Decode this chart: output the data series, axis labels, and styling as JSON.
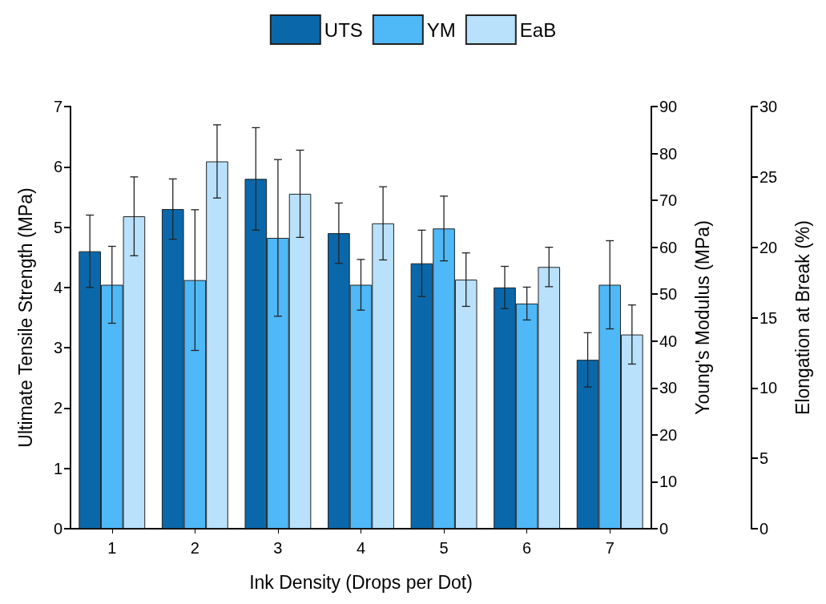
{
  "chart_data": {
    "type": "bar",
    "xlabel": "Ink Density (Drops per Dot)",
    "ylabel": "Ultimate Tensile Strength (MPa)",
    "y2label": "Young's Modulus (MPa)",
    "y3label": "Elongation at Break (%)",
    "categories": [
      "1",
      "2",
      "3",
      "4",
      "5",
      "6",
      "7"
    ],
    "series": [
      {
        "name": "UTS",
        "color": "#0a68aa",
        "values": [
          4.6,
          5.3,
          5.8,
          4.9,
          4.4,
          4.0,
          2.8
        ],
        "errors": [
          0.6,
          0.5,
          0.85,
          0.5,
          0.55,
          0.35,
          0.45
        ]
      },
      {
        "name": "YM",
        "color": "#4fb8f7",
        "axis": "y2",
        "values": [
          52,
          53,
          62,
          52,
          64,
          48,
          52
        ],
        "errors": [
          8.2,
          15,
          16.7,
          5.4,
          6.9,
          3.5,
          9.4
        ]
      },
      {
        "name": "EaB",
        "color": "#b9e1fb",
        "axis": "y3",
        "values": [
          22.2,
          26.1,
          23.8,
          21.7,
          17.7,
          18.6,
          13.8
        ],
        "errors": [
          2.8,
          2.6,
          3.1,
          2.6,
          1.9,
          1.4,
          2.1
        ]
      }
    ],
    "ylim": [
      0,
      7
    ],
    "yticks": [
      0,
      1,
      2,
      3,
      4,
      5,
      6,
      7
    ],
    "y2lim": [
      0,
      90
    ],
    "y2ticks": [
      0,
      10,
      20,
      30,
      40,
      50,
      60,
      70,
      80,
      90
    ],
    "y3lim": [
      0,
      30
    ],
    "y3ticks": [
      0,
      5,
      10,
      15,
      20,
      25,
      30
    ],
    "grid": false,
    "legend": "top"
  }
}
